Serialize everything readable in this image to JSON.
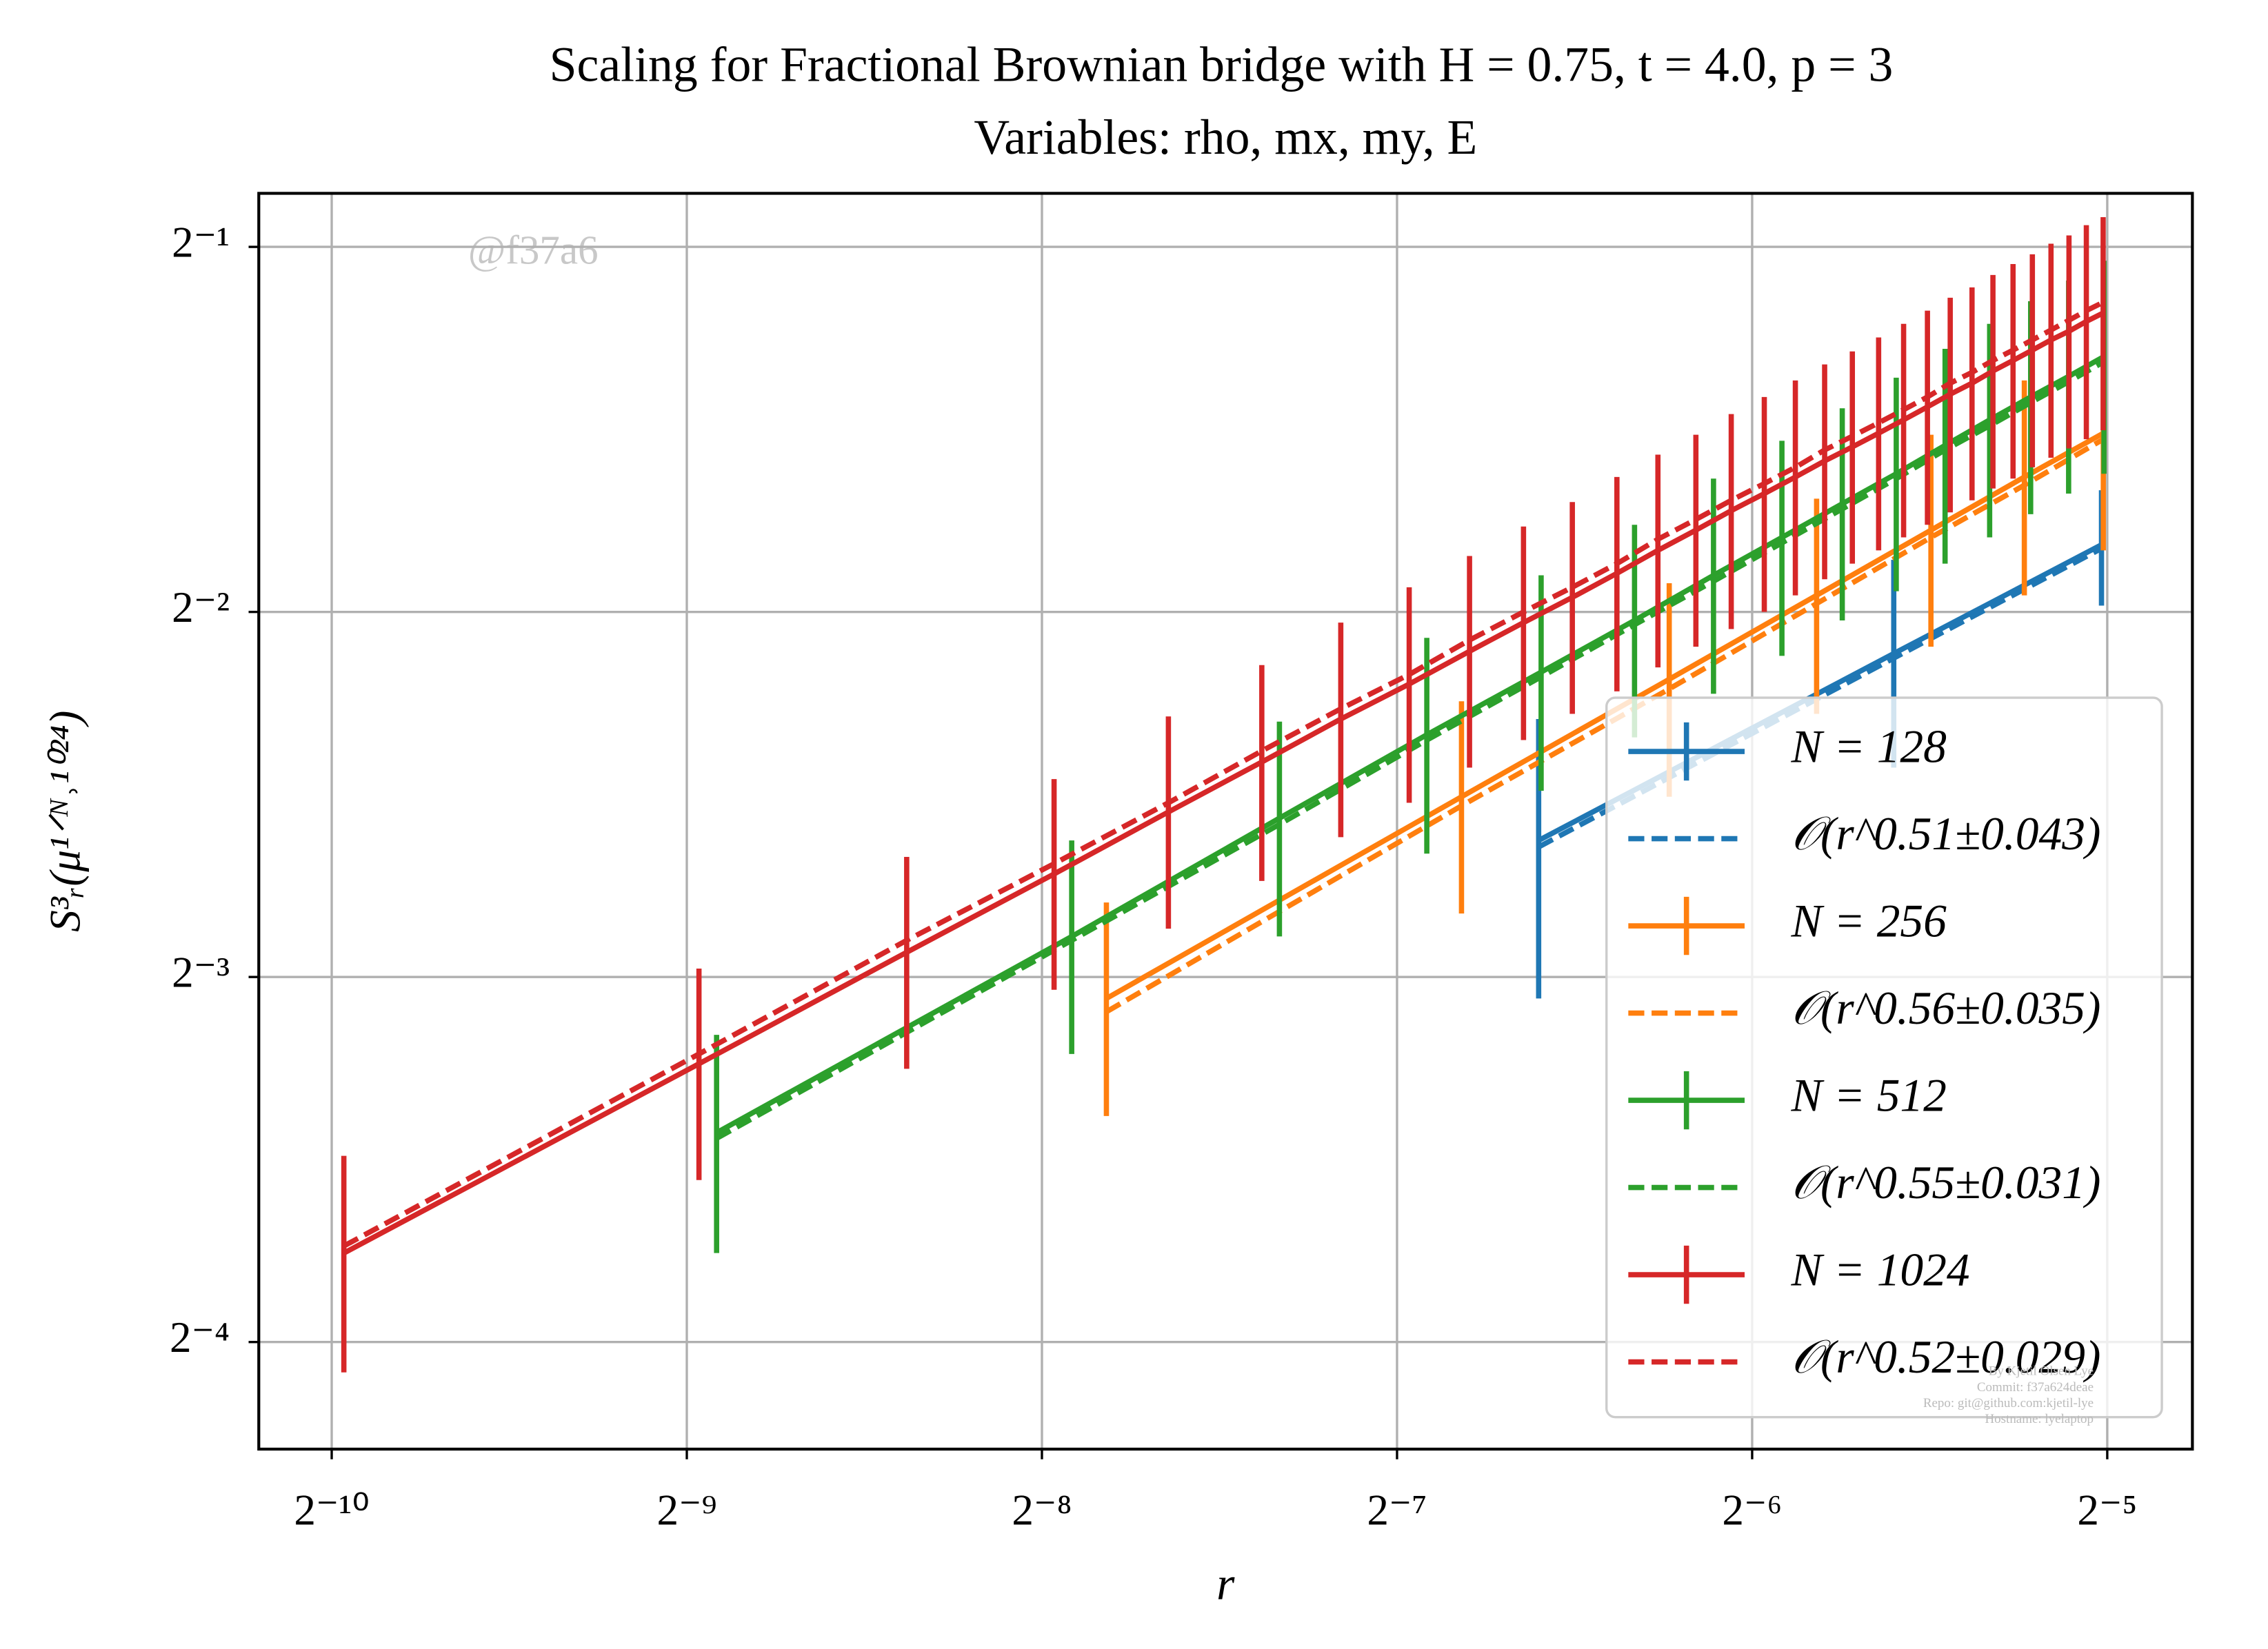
{
  "chart_data": {
    "type": "line",
    "title": "Scaling for Fractional Brownian bridge with H = 0.75, t = 4.0, p = 3",
    "subtitle": "Variables: rho, mx, my, E",
    "x_label": "r",
    "y_label": "S³ᵣ(μ¹ᐟᴺ˒¹⁰²⁴)",
    "watermark": "@f37a6",
    "footer": [
      "By Kjetil Olsen Lye",
      "Commit: f37a624deae",
      "Repo: git@github.com:kjetil-lye",
      "Hostname: lyelaptop"
    ],
    "log_x": 2,
    "log_y": 2,
    "grid": true,
    "legend": "lower right",
    "xlim": [
      0.000847,
      0.0369
    ],
    "ylim": [
      0.051,
      0.5535
    ],
    "xticks": [
      {
        "value": 0.0009765625,
        "label": "2⁻¹⁰"
      },
      {
        "value": 0.001953125,
        "label": "2⁻⁹"
      },
      {
        "value": 0.00390625,
        "label": "2⁻⁸"
      },
      {
        "value": 0.0078125,
        "label": "2⁻⁷"
      },
      {
        "value": 0.015625,
        "label": "2⁻⁶"
      },
      {
        "value": 0.03125,
        "label": "2⁻⁵"
      }
    ],
    "yticks": [
      {
        "value": 0.0625,
        "label": "2⁻⁴"
      },
      {
        "value": 0.125,
        "label": "2⁻³"
      },
      {
        "value": 0.25,
        "label": "2⁻²"
      },
      {
        "value": 0.5,
        "label": "2⁻¹"
      }
    ],
    "series": [
      {
        "name": "N = 128",
        "color": "#1f77b4",
        "linestyle": "solid",
        "x": [
          0.0103,
          0.0206,
          0.0309
        ],
        "values": [
          0.162,
          0.231,
          0.284
        ],
        "errors": [
          0.042,
          0.045,
          0.031
        ]
      },
      {
        "name": "𝒪(r^0.51±0.043)",
        "color": "#1f77b4",
        "linestyle": "dashed",
        "x": [
          0.0103,
          0.0206,
          0.0309
        ],
        "values": [
          0.16,
          0.229,
          0.282
        ]
      },
      {
        "name": "N = 256",
        "color": "#ff7f0e",
        "linestyle": "solid",
        "x": [
          0.00443,
          0.00886,
          0.01329,
          0.01772,
          0.02215,
          0.02658,
          0.03101
        ],
        "values": [
          0.12,
          0.176,
          0.22,
          0.258,
          0.292,
          0.323,
          0.351
        ],
        "errors": [
          0.024,
          0.035,
          0.044,
          0.052,
          0.058,
          0.065,
          0.07
        ]
      },
      {
        "name": "𝒪(r^0.56±0.035)",
        "color": "#ff7f0e",
        "linestyle": "dashed",
        "x": [
          0.00443,
          0.00886,
          0.01329,
          0.01772,
          0.02215,
          0.02658,
          0.03101
        ],
        "values": [
          0.117,
          0.173,
          0.216,
          0.254,
          0.288,
          0.318,
          0.347
        ]
      },
      {
        "name": "N = 512",
        "color": "#2ca02c",
        "linestyle": "solid",
        "x": [
          0.00207,
          0.00414,
          0.00621,
          0.00828,
          0.01035,
          0.01242,
          0.01449,
          0.01656,
          0.01863,
          0.0207,
          0.02277,
          0.02484,
          0.02691,
          0.02898,
          0.03105
        ],
        "values": [
          0.093,
          0.135,
          0.169,
          0.198,
          0.223,
          0.246,
          0.268,
          0.288,
          0.307,
          0.325,
          0.343,
          0.36,
          0.376,
          0.391,
          0.406
        ],
        "errors": [
          0.019,
          0.027,
          0.034,
          0.04,
          0.045,
          0.049,
          0.054,
          0.058,
          0.061,
          0.065,
          0.069,
          0.072,
          0.075,
          0.078,
          0.081
        ]
      },
      {
        "name": "𝒪(r^0.55±0.031)",
        "color": "#2ca02c",
        "linestyle": "dashed",
        "x": [
          0.00207,
          0.00414,
          0.00621,
          0.00828,
          0.01035,
          0.01242,
          0.01449,
          0.01656,
          0.01863,
          0.0207,
          0.02277,
          0.02484,
          0.02691,
          0.02898,
          0.03105
        ],
        "values": [
          0.092,
          0.134,
          0.167,
          0.196,
          0.221,
          0.244,
          0.265,
          0.285,
          0.304,
          0.322,
          0.34,
          0.356,
          0.372,
          0.387,
          0.402
        ]
      },
      {
        "name": "N = 1024",
        "color": "#d62728",
        "linestyle": "solid",
        "x": [
          0.001,
          0.002,
          0.003,
          0.004,
          0.005,
          0.006,
          0.007,
          0.008,
          0.009,
          0.01,
          0.011,
          0.012,
          0.013,
          0.014,
          0.015,
          0.016,
          0.017,
          0.018,
          0.019,
          0.02,
          0.021,
          0.022,
          0.023,
          0.024,
          0.025,
          0.026,
          0.027,
          0.028,
          0.029,
          0.03,
          0.031
        ],
        "values": [
          0.074,
          0.106,
          0.131,
          0.152,
          0.171,
          0.188,
          0.204,
          0.218,
          0.232,
          0.245,
          0.257,
          0.269,
          0.281,
          0.292,
          0.303,
          0.313,
          0.323,
          0.333,
          0.342,
          0.351,
          0.36,
          0.369,
          0.378,
          0.386,
          0.395,
          0.403,
          0.411,
          0.419,
          0.426,
          0.434,
          0.441
        ],
        "errors": [
          0.015,
          0.021,
          0.026,
          0.03,
          0.034,
          0.038,
          0.041,
          0.044,
          0.046,
          0.049,
          0.051,
          0.054,
          0.056,
          0.058,
          0.061,
          0.063,
          0.065,
          0.067,
          0.068,
          0.07,
          0.072,
          0.074,
          0.076,
          0.077,
          0.079,
          0.081,
          0.082,
          0.084,
          0.085,
          0.087,
          0.088
        ]
      },
      {
        "name": "𝒪(r^0.52±0.029)",
        "color": "#d62728",
        "linestyle": "dashed",
        "x": [
          0.001,
          0.002,
          0.003,
          0.004,
          0.005,
          0.006,
          0.007,
          0.008,
          0.009,
          0.01,
          0.011,
          0.012,
          0.013,
          0.014,
          0.015,
          0.016,
          0.017,
          0.018,
          0.019,
          0.02,
          0.021,
          0.022,
          0.023,
          0.024,
          0.025,
          0.026,
          0.027,
          0.028,
          0.029,
          0.03,
          0.031
        ],
        "values": [
          0.075,
          0.108,
          0.134,
          0.155,
          0.174,
          0.192,
          0.208,
          0.222,
          0.237,
          0.25,
          0.262,
          0.274,
          0.287,
          0.298,
          0.309,
          0.319,
          0.329,
          0.34,
          0.349,
          0.358,
          0.367,
          0.376,
          0.386,
          0.394,
          0.403,
          0.411,
          0.419,
          0.427,
          0.435,
          0.443,
          0.45
        ]
      }
    ]
  }
}
